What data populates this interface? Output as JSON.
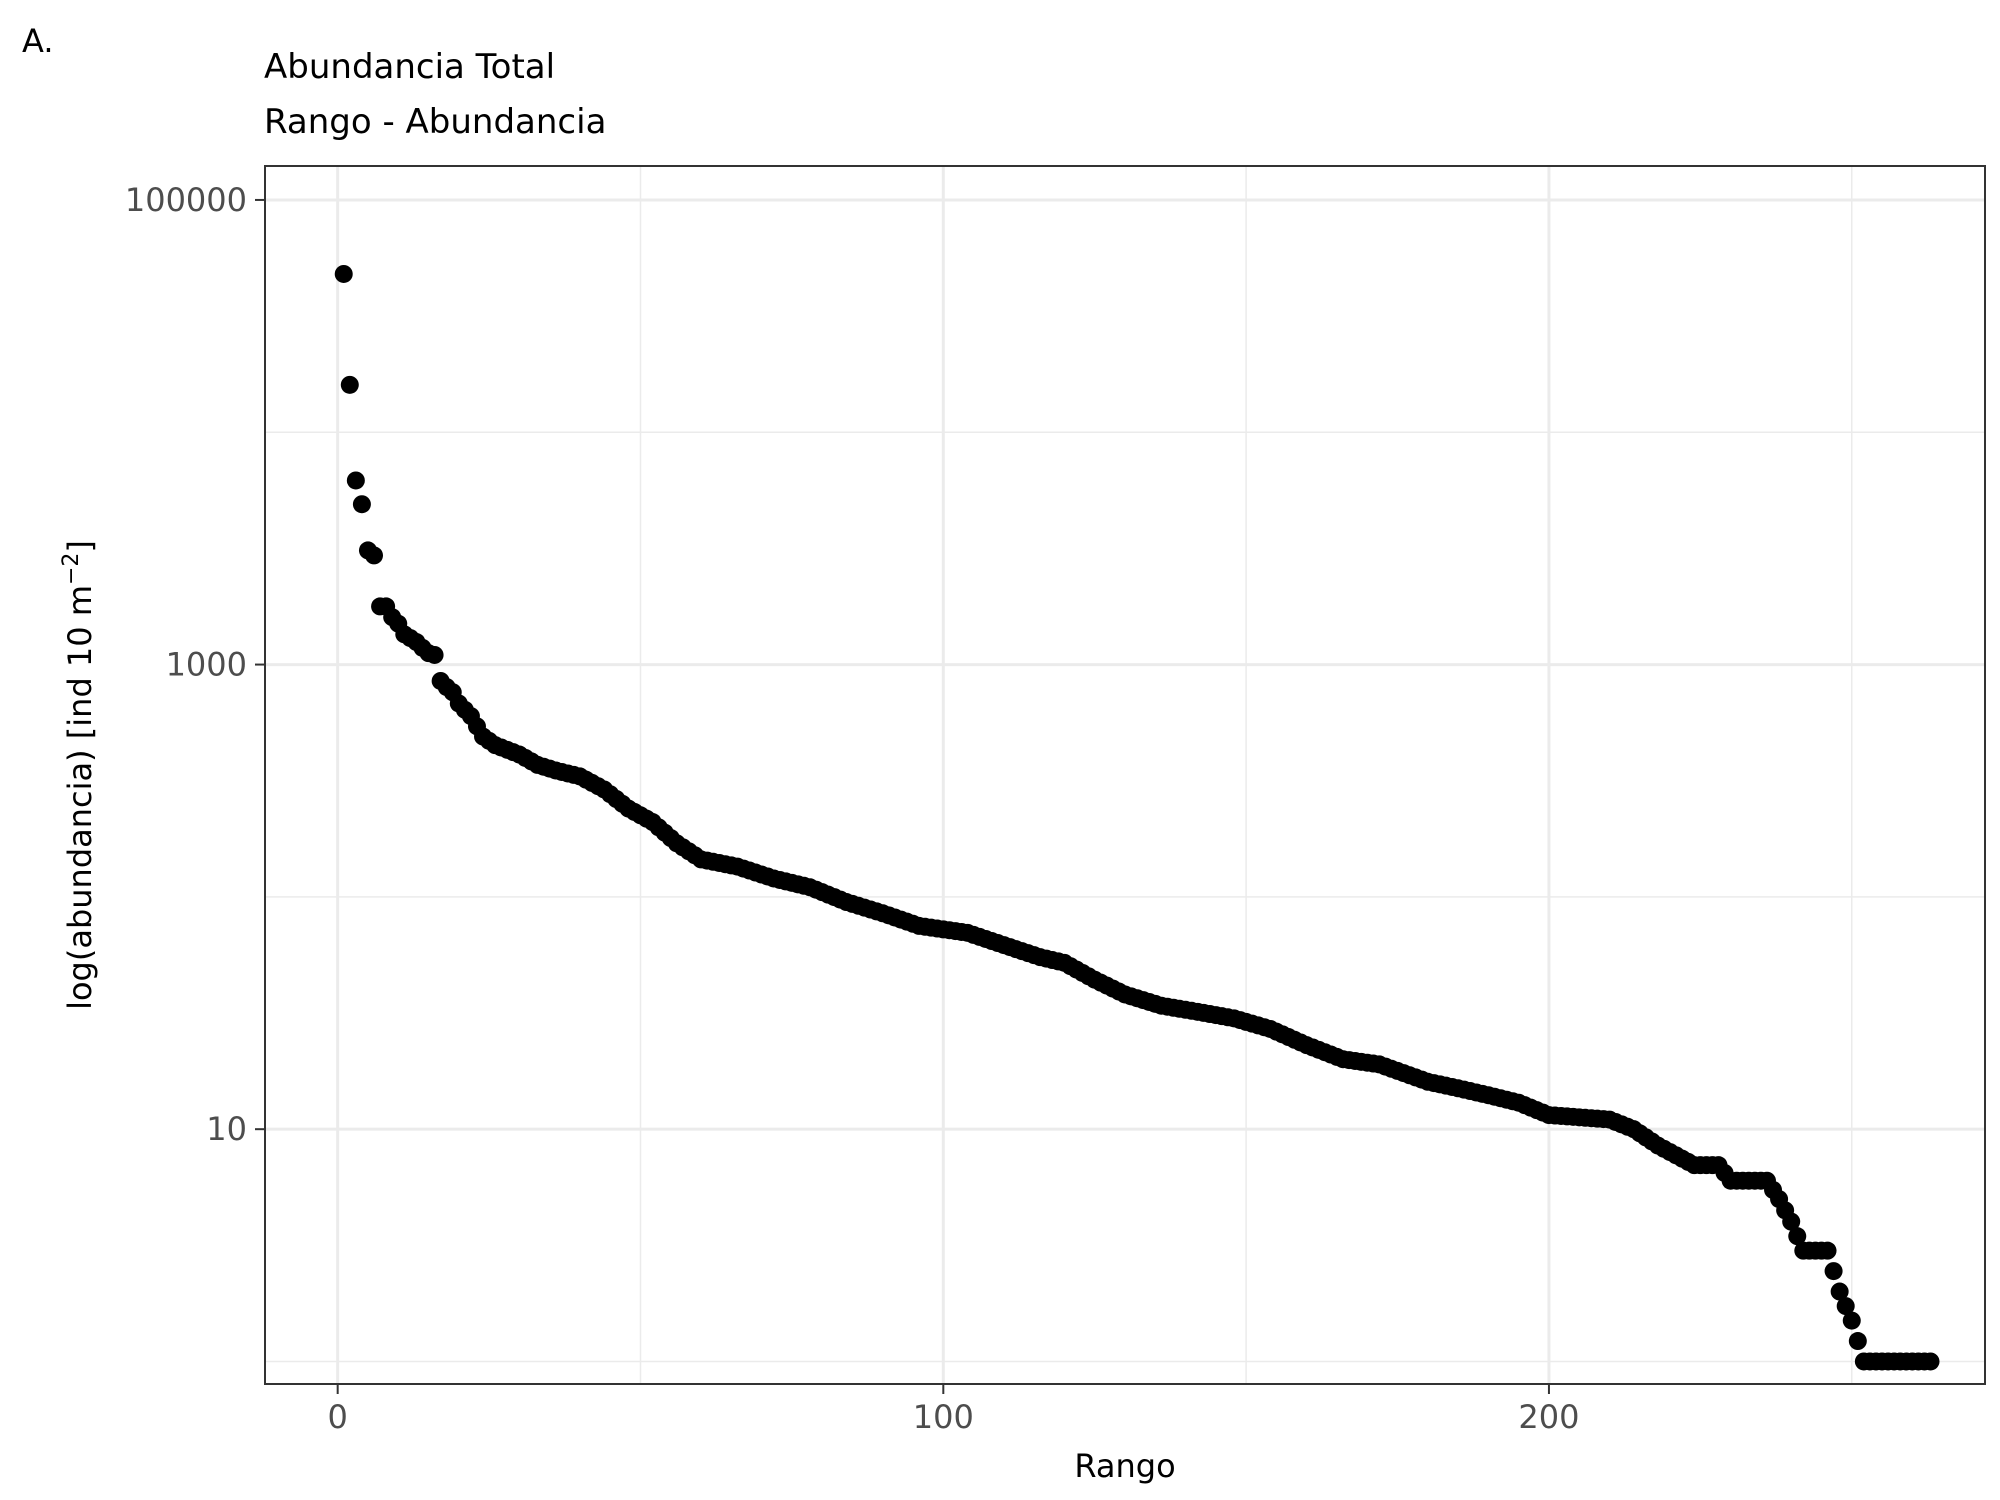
{
  "chart_data": {
    "type": "scatter",
    "panel_label": "A.",
    "title": "Abundancia Total",
    "subtitle": "Rango - Abundancia",
    "xlabel": "Rango",
    "ylabel_main": "log(abundancia) [ind 10 m",
    "ylabel_sup": "−2",
    "ylabel_close": "]",
    "y_scale": "log10",
    "x_ticks": [
      0,
      100,
      200
    ],
    "x_tick_labels": [
      "0",
      "100",
      "200"
    ],
    "y_ticks": [
      10,
      1000,
      100000
    ],
    "y_tick_labels": [
      "10",
      "1000",
      "100000"
    ],
    "xlim": [
      -12,
      272
    ],
    "ylim": [
      0.8,
      140000
    ],
    "grid": true,
    "legend": "none",
    "point_color": "#000000",
    "anchors": [
      [
        1,
        48000
      ],
      [
        2,
        16000
      ],
      [
        3,
        6200
      ],
      [
        4,
        4900
      ],
      [
        5,
        3100
      ],
      [
        6,
        2950
      ],
      [
        7,
        1780
      ],
      [
        8,
        1780
      ],
      [
        9,
        1600
      ],
      [
        10,
        1500
      ],
      [
        11,
        1350
      ],
      [
        12,
        1300
      ],
      [
        13,
        1250
      ],
      [
        14,
        1180
      ],
      [
        15,
        1120
      ],
      [
        16,
        1100
      ],
      [
        17,
        850
      ],
      [
        18,
        800
      ],
      [
        19,
        760
      ],
      [
        20,
        680
      ],
      [
        22,
        600
      ],
      [
        24,
        490
      ],
      [
        26,
        450
      ],
      [
        30,
        410
      ],
      [
        33,
        370
      ],
      [
        36,
        350
      ],
      [
        40,
        330
      ],
      [
        44,
        290
      ],
      [
        48,
        240
      ],
      [
        52,
        210
      ],
      [
        56,
        170
      ],
      [
        60,
        145
      ],
      [
        66,
        135
      ],
      [
        72,
        120
      ],
      [
        78,
        110
      ],
      [
        84,
        95
      ],
      [
        90,
        85
      ],
      [
        96,
        75
      ],
      [
        104,
        70
      ],
      [
        110,
        62
      ],
      [
        116,
        55
      ],
      [
        120,
        52
      ],
      [
        125,
        44
      ],
      [
        130,
        38
      ],
      [
        136,
        34
      ],
      [
        142,
        32
      ],
      [
        148,
        30
      ],
      [
        154,
        27
      ],
      [
        160,
        23
      ],
      [
        166,
        20
      ],
      [
        172,
        19
      ],
      [
        180,
        16
      ],
      [
        185,
        15
      ],
      [
        190,
        14
      ],
      [
        195,
        13
      ],
      [
        200,
        11.5
      ],
      [
        210,
        11
      ],
      [
        214,
        10
      ],
      [
        218,
        8.5
      ],
      [
        224,
        7
      ],
      [
        228,
        7
      ],
      [
        230,
        6
      ],
      [
        236,
        6
      ],
      [
        238,
        5
      ],
      [
        240,
        4
      ],
      [
        242,
        3
      ],
      [
        246,
        3
      ],
      [
        248,
        2
      ],
      [
        250,
        1.5
      ],
      [
        252,
        1
      ],
      [
        263,
        1
      ]
    ]
  }
}
